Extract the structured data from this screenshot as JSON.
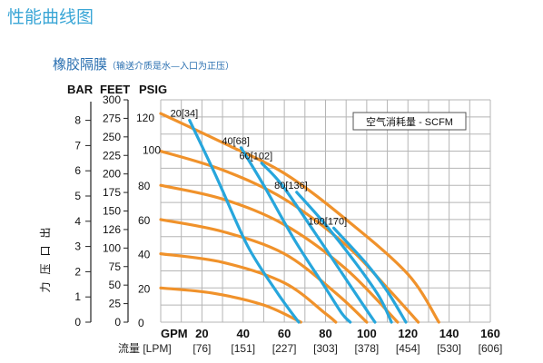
{
  "page_title": "性能曲线图",
  "subtitle": "橡胶隔膜",
  "subtitle_note": "（输送介质是水—入口为正压）",
  "colors": {
    "pressure_curve": "#f0922b",
    "air_curve": "#27a6dc",
    "title": "#3aa6d6"
  },
  "chart_data": {
    "type": "line",
    "legend_box": "空气消耗量 - SCFM",
    "ylabel": "出口压力",
    "axis_headers": {
      "bar": "BAR",
      "feet": "FEET",
      "psig": "PSIG"
    },
    "bar_ticks": [
      "8",
      "7",
      "6",
      "5",
      "4",
      "3",
      "2",
      "1",
      "0"
    ],
    "feet_ticks": [
      "300",
      "275",
      "250",
      "225",
      "200",
      "175",
      "150",
      "126",
      "100",
      "75",
      "50",
      "25",
      "0"
    ],
    "psig_ticks": [
      "120",
      "100",
      "80",
      "60",
      "40",
      "20",
      "0"
    ],
    "xunit": "GPM",
    "xticks": [
      "20",
      "40",
      "60",
      "80",
      "100",
      "120",
      "140",
      "160"
    ],
    "xlabel": "流量 [LPM]",
    "lpm_ticks": [
      "[76]",
      "[151]",
      "[227]",
      "[303]",
      "[378]",
      "[454]",
      "[530]",
      "[606]"
    ],
    "xlim": [
      0,
      160
    ],
    "ylim": [
      0,
      130
    ],
    "grid": true,
    "pressure_curves": [
      {
        "points": [
          [
            0,
            122
          ],
          [
            30,
            105
          ],
          [
            60,
            87
          ],
          [
            90,
            60
          ],
          [
            120,
            28
          ],
          [
            135,
            0
          ]
        ]
      },
      {
        "points": [
          [
            0,
            100
          ],
          [
            30,
            89
          ],
          [
            60,
            72
          ],
          [
            90,
            45
          ],
          [
            110,
            20
          ],
          [
            125,
            0
          ]
        ]
      },
      {
        "points": [
          [
            0,
            80
          ],
          [
            30,
            72
          ],
          [
            60,
            57
          ],
          [
            90,
            31
          ],
          [
            115,
            0
          ]
        ]
      },
      {
        "points": [
          [
            0,
            60
          ],
          [
            30,
            53
          ],
          [
            60,
            40
          ],
          [
            85,
            17
          ],
          [
            100,
            0
          ]
        ]
      },
      {
        "points": [
          [
            0,
            40
          ],
          [
            30,
            35
          ],
          [
            60,
            23
          ],
          [
            80,
            5
          ],
          [
            85,
            0
          ]
        ]
      },
      {
        "points": [
          [
            0,
            20
          ],
          [
            25,
            17
          ],
          [
            50,
            10
          ],
          [
            68,
            0
          ]
        ]
      }
    ],
    "air_curves": [
      {
        "label": "20[34]",
        "points": [
          [
            14,
            118
          ],
          [
            27,
            85
          ],
          [
            42,
            45
          ],
          [
            55,
            20
          ],
          [
            62,
            8
          ],
          [
            67,
            0
          ]
        ]
      },
      {
        "label": "40[68]",
        "points": [
          [
            39,
            102
          ],
          [
            50,
            80
          ],
          [
            65,
            48
          ],
          [
            80,
            20
          ],
          [
            88,
            5
          ],
          [
            92,
            0
          ]
        ]
      },
      {
        "label": "60[102]",
        "points": [
          [
            49,
            93
          ],
          [
            59,
            80
          ],
          [
            75,
            52
          ],
          [
            90,
            25
          ],
          [
            100,
            7
          ],
          [
            104,
            0
          ]
        ]
      },
      {
        "label": "80[136]",
        "points": [
          [
            66,
            76
          ],
          [
            80,
            57
          ],
          [
            95,
            34
          ],
          [
            106,
            15
          ],
          [
            112,
            0
          ]
        ]
      },
      {
        "label": "100[170]",
        "points": [
          [
            84,
            55
          ],
          [
            100,
            34
          ],
          [
            110,
            18
          ],
          [
            119,
            0
          ]
        ]
      }
    ]
  }
}
